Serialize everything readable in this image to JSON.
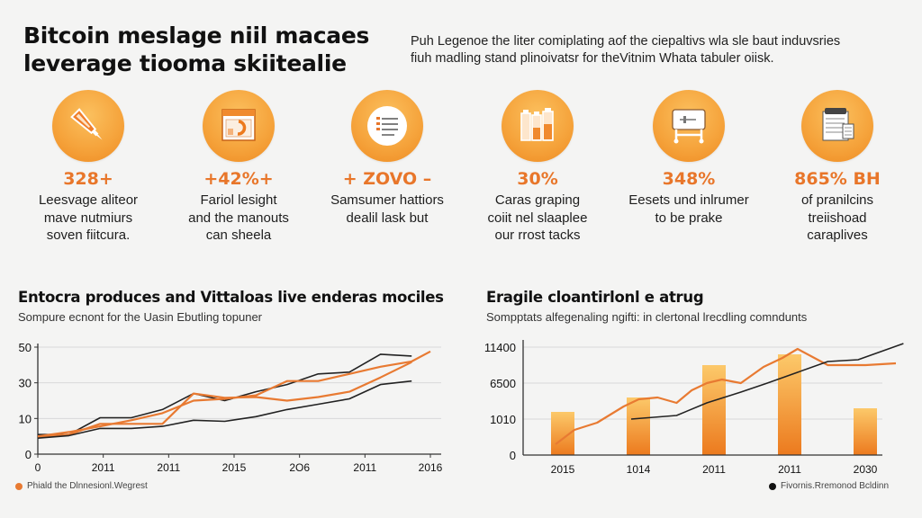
{
  "header": {
    "title_lines": [
      "Bitcoin meslage niil macaes",
      "leverage tiooma skiitealie"
    ],
    "intro_lines": [
      "Puh Legenoe the liter comiplating aof the ciepaltivs wla sle baut induvsries",
      "fiuh madling stand plinoivatsr for theVitnim Whata tabuler oiisk."
    ]
  },
  "stats": [
    {
      "icon": "pen-icon",
      "value": "328+",
      "desc_lines": [
        "Leesvage aliteor",
        "mave nutmiurs",
        "soven fiitcura."
      ]
    },
    {
      "icon": "browser-chart-icon",
      "value": "+42%+",
      "desc_lines": [
        "Fariol lesight",
        "and the manouts",
        "can sheela"
      ]
    },
    {
      "icon": "checklist-icon",
      "value": "+ ZOVO –",
      "desc_lines": [
        "Samsumer hattiors",
        "dealil lask but"
      ]
    },
    {
      "icon": "bottles-icon",
      "value": "30%",
      "desc_lines": [
        "Caras graping",
        "coiit nel slaaplee",
        "our rrost tacks"
      ]
    },
    {
      "icon": "machine-icon",
      "value": "348%",
      "desc_lines": [
        "Eesets und inlrumer",
        "to be prake"
      ]
    },
    {
      "icon": "clipboard-document-icon",
      "value": "865% BH",
      "desc_lines": [
        "of pranilcins",
        "treiishoad",
        "caraplives"
      ]
    }
  ],
  "colors": {
    "accent": "#e8762a",
    "line_orange": "#e87a32",
    "line_dark": "#222222",
    "bar_top": "#fcc96a",
    "bar_bottom": "#ec7a1e",
    "grid": "#d8d8d8"
  },
  "chart_data": [
    {
      "type": "line",
      "title": "Entocra produces and Vittaloas live enderas mociles",
      "subtitle": "Sompure ecnont for the Uasin Ebutling topuner",
      "xlabel": "",
      "ylabel": "",
      "x_ticks": [
        "0",
        "2011",
        "2011",
        "2015",
        "2O6",
        "2011",
        "2016"
      ],
      "y_ticks": [
        "0",
        "10",
        "30",
        "50"
      ],
      "y_tick_levels": [
        0,
        1,
        2,
        3
      ],
      "ylim": [
        0,
        3
      ],
      "grid": true,
      "legend": {
        "position": "bottom-left",
        "entries": [
          {
            "label": "Phiald the Dlnnesionl.Wegrest",
            "color": "#e87a32"
          }
        ]
      },
      "x": [
        0,
        0.5,
        1,
        1.5,
        2,
        2.5,
        3,
        3.5,
        4,
        4.5,
        5,
        5.5,
        6,
        6.3
      ],
      "series": [
        {
          "name": "dark-upper",
          "color": "#222222",
          "values": [
            0.55,
            0.55,
            1.02,
            1.02,
            1.25,
            1.7,
            1.5,
            1.75,
            1.95,
            2.25,
            2.3,
            2.8,
            2.75,
            null
          ]
        },
        {
          "name": "orange-upper",
          "color": "#e87a32",
          "values": [
            0.5,
            0.62,
            0.78,
            0.95,
            1.15,
            1.5,
            1.55,
            1.65,
            2.05,
            2.05,
            2.25,
            2.45,
            2.6,
            2.88
          ]
        },
        {
          "name": "orange-lower",
          "color": "#e87a32",
          "values": [
            0.48,
            0.55,
            0.85,
            0.85,
            0.85,
            1.7,
            1.58,
            1.6,
            1.5,
            1.6,
            1.75,
            2.15,
            2.58,
            null
          ]
        },
        {
          "name": "dark-lower",
          "color": "#222222",
          "values": [
            0.45,
            0.52,
            0.72,
            0.72,
            0.78,
            0.95,
            0.92,
            1.05,
            1.25,
            1.4,
            1.55,
            1.95,
            2.05,
            null
          ]
        }
      ]
    },
    {
      "type": "bar",
      "title": "Eragile cloantirlonl e atrug",
      "subtitle": "Sompptats alfegenaling ngifti: in clertonal lrecdling comndunts",
      "xlabel": "",
      "ylabel": "",
      "categories": [
        "2015",
        "1014",
        "2011",
        "2011",
        "2030"
      ],
      "y_ticks": [
        "0",
        "1010",
        "6500",
        "11400"
      ],
      "y_tick_levels": [
        0,
        1,
        2,
        3
      ],
      "ylim": [
        0,
        3
      ],
      "grid": true,
      "bar_values": [
        1.2,
        1.6,
        2.5,
        2.8,
        1.3
      ],
      "line_series": [
        {
          "name": "orange-trend",
          "color": "#e87a32",
          "x": [
            0,
            0.25,
            0.55,
            0.9,
            1.1,
            1.35,
            1.6,
            1.8,
            2.0,
            2.2,
            2.45,
            2.75,
            3.0,
            3.2,
            3.6,
            3.9,
            4.1,
            4.5
          ],
          "values": [
            0.3,
            0.7,
            0.9,
            1.35,
            1.55,
            1.6,
            1.45,
            1.8,
            2.0,
            2.1,
            2.0,
            2.45,
            2.7,
            2.95,
            2.5,
            2.5,
            2.5,
            2.55
          ]
        },
        {
          "name": "dark-trend",
          "color": "#222222",
          "x": [
            1.0,
            1.6,
            2.0,
            2.45,
            2.8,
            3.2,
            3.6,
            4.0,
            4.6
          ],
          "values": [
            1.0,
            1.1,
            1.45,
            1.75,
            2.0,
            2.3,
            2.6,
            2.65,
            3.1
          ]
        }
      ],
      "legend": {
        "position": "bottom-right",
        "entries": [
          {
            "label": "Fivornis.Rremonod Bcldinn",
            "color": "#111111"
          }
        ]
      }
    }
  ]
}
